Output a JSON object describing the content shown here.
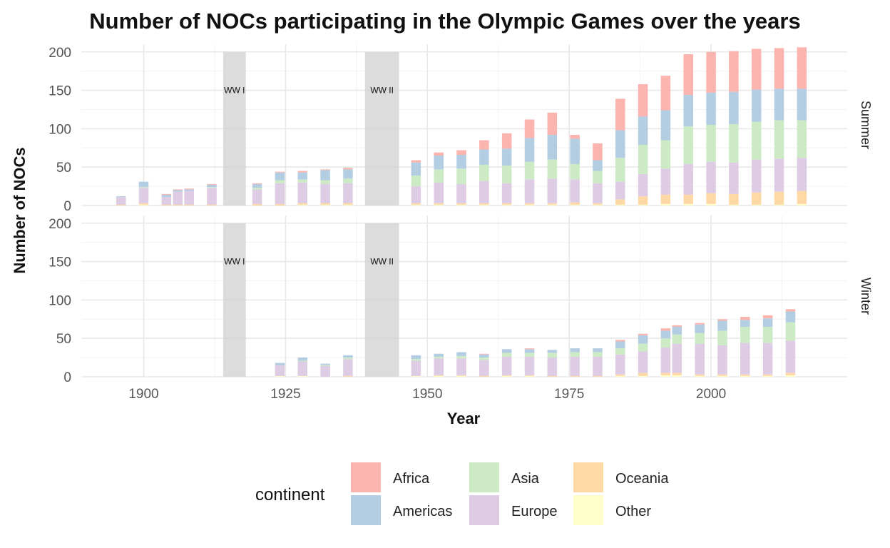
{
  "chart_data": {
    "type": "bar",
    "stacked": true,
    "title": "Number of NOCs participating in the Olympic Games over the years",
    "xlabel": "Year",
    "ylabel": "Number of NOCs",
    "xlim": [
      1889,
      2024
    ],
    "ylim": [
      0,
      210
    ],
    "x_ticks": [
      1900,
      1925,
      1950,
      1975,
      2000
    ],
    "y_ticks": [
      0,
      50,
      100,
      150,
      200
    ],
    "grid": true,
    "legend": {
      "title": "continent",
      "position": "bottom",
      "entries": [
        "Africa",
        "Americas",
        "Asia",
        "Europe",
        "Oceania",
        "Other"
      ]
    },
    "colors": {
      "Africa": "#FBB4AE",
      "Americas": "#B3CDE3",
      "Asia": "#CCEBC5",
      "Europe": "#DECBE4",
      "Oceania": "#FED9A6",
      "Other": "#FFFFCC"
    },
    "stack_order": [
      "Other",
      "Oceania",
      "Europe",
      "Asia",
      "Americas",
      "Africa"
    ],
    "annotations": [
      {
        "label": "WW I",
        "x_start": 1914,
        "x_end": 1918,
        "y": 150
      },
      {
        "label": "WW II",
        "x_start": 1939,
        "x_end": 1945,
        "y": 150
      }
    ],
    "facets": [
      {
        "name": "Summer",
        "bars": [
          {
            "year": 1896,
            "Africa": 0,
            "Americas": 1,
            "Asia": 0,
            "Europe": 10,
            "Oceania": 1,
            "Other": 0
          },
          {
            "year": 1900,
            "Africa": 0,
            "Americas": 7,
            "Asia": 1,
            "Europe": 20,
            "Oceania": 2,
            "Other": 1
          },
          {
            "year": 1904,
            "Africa": 1,
            "Americas": 3,
            "Asia": 0,
            "Europe": 10,
            "Oceania": 1,
            "Other": 0
          },
          {
            "year": 1906,
            "Africa": 1,
            "Americas": 2,
            "Asia": 0,
            "Europe": 17,
            "Oceania": 1,
            "Other": 0
          },
          {
            "year": 1908,
            "Africa": 1,
            "Americas": 2,
            "Asia": 0,
            "Europe": 18,
            "Oceania": 1,
            "Other": 0
          },
          {
            "year": 1912,
            "Africa": 1,
            "Americas": 3,
            "Asia": 1,
            "Europe": 22,
            "Oceania": 1,
            "Other": 0
          },
          {
            "year": 1920,
            "Africa": 1,
            "Americas": 5,
            "Asia": 2,
            "Europe": 19,
            "Oceania": 2,
            "Other": 0
          },
          {
            "year": 1924,
            "Africa": 1,
            "Americas": 10,
            "Asia": 4,
            "Europe": 27,
            "Oceania": 2,
            "Other": 0
          },
          {
            "year": 1928,
            "Africa": 2,
            "Americas": 9,
            "Asia": 4,
            "Europe": 27,
            "Oceania": 2,
            "Other": 1
          },
          {
            "year": 1932,
            "Africa": 1,
            "Americas": 13,
            "Asia": 5,
            "Europe": 25,
            "Oceania": 2,
            "Other": 1
          },
          {
            "year": 1936,
            "Africa": 2,
            "Americas": 12,
            "Asia": 6,
            "Europe": 26,
            "Oceania": 2,
            "Other": 1
          },
          {
            "year": 1948,
            "Africa": 3,
            "Americas": 17,
            "Asia": 14,
            "Europe": 22,
            "Oceania": 2,
            "Other": 1
          },
          {
            "year": 1952,
            "Africa": 4,
            "Americas": 18,
            "Asia": 17,
            "Europe": 27,
            "Oceania": 2,
            "Other": 1
          },
          {
            "year": 1956,
            "Africa": 6,
            "Americas": 18,
            "Asia": 20,
            "Europe": 25,
            "Oceania": 2,
            "Other": 1
          },
          {
            "year": 1960,
            "Africa": 12,
            "Americas": 20,
            "Asia": 21,
            "Europe": 29,
            "Oceania": 2,
            "Other": 1
          },
          {
            "year": 1964,
            "Africa": 20,
            "Americas": 22,
            "Asia": 23,
            "Europe": 26,
            "Oceania": 2,
            "Other": 1
          },
          {
            "year": 1968,
            "Africa": 24,
            "Americas": 31,
            "Asia": 23,
            "Europe": 31,
            "Oceania": 2,
            "Other": 1
          },
          {
            "year": 1972,
            "Africa": 29,
            "Americas": 32,
            "Asia": 25,
            "Europe": 32,
            "Oceania": 2,
            "Other": 1
          },
          {
            "year": 1976,
            "Africa": 5,
            "Americas": 33,
            "Asia": 20,
            "Europe": 30,
            "Oceania": 3,
            "Other": 1
          },
          {
            "year": 1980,
            "Africa": 22,
            "Americas": 14,
            "Asia": 16,
            "Europe": 26,
            "Oceania": 2,
            "Other": 1
          },
          {
            "year": 1984,
            "Africa": 41,
            "Americas": 36,
            "Asia": 31,
            "Europe": 23,
            "Oceania": 7,
            "Other": 1
          },
          {
            "year": 1988,
            "Africa": 42,
            "Americas": 37,
            "Asia": 38,
            "Europe": 29,
            "Oceania": 11,
            "Other": 1
          },
          {
            "year": 1992,
            "Africa": 45,
            "Americas": 39,
            "Asia": 37,
            "Europe": 34,
            "Oceania": 12,
            "Other": 2
          },
          {
            "year": 1996,
            "Africa": 53,
            "Americas": 41,
            "Asia": 49,
            "Europe": 40,
            "Oceania": 12,
            "Other": 2
          },
          {
            "year": 2000,
            "Africa": 53,
            "Americas": 42,
            "Asia": 48,
            "Europe": 41,
            "Oceania": 14,
            "Other": 2
          },
          {
            "year": 2004,
            "Africa": 53,
            "Americas": 42,
            "Asia": 50,
            "Europe": 41,
            "Oceania": 14,
            "Other": 1
          },
          {
            "year": 2008,
            "Africa": 53,
            "Americas": 42,
            "Asia": 49,
            "Europe": 43,
            "Oceania": 16,
            "Other": 1
          },
          {
            "year": 2012,
            "Africa": 53,
            "Americas": 41,
            "Asia": 50,
            "Europe": 43,
            "Oceania": 17,
            "Other": 1
          },
          {
            "year": 2016,
            "Africa": 54,
            "Americas": 41,
            "Asia": 49,
            "Europe": 43,
            "Oceania": 17,
            "Other": 2
          }
        ]
      },
      {
        "name": "Winter",
        "bars": [
          {
            "year": 1924,
            "Africa": 0,
            "Americas": 3,
            "Asia": 0,
            "Europe": 14,
            "Oceania": 0,
            "Other": 1
          },
          {
            "year": 1928,
            "Africa": 0,
            "Americas": 4,
            "Asia": 1,
            "Europe": 19,
            "Oceania": 0,
            "Other": 1
          },
          {
            "year": 1932,
            "Africa": 0,
            "Americas": 2,
            "Asia": 1,
            "Europe": 14,
            "Oceania": 0,
            "Other": 0
          },
          {
            "year": 1936,
            "Africa": 0,
            "Americas": 3,
            "Asia": 2,
            "Europe": 22,
            "Oceania": 1,
            "Other": 0
          },
          {
            "year": 1948,
            "Africa": 0,
            "Americas": 5,
            "Asia": 2,
            "Europe": 20,
            "Oceania": 0,
            "Other": 1
          },
          {
            "year": 1952,
            "Africa": 0,
            "Americas": 4,
            "Asia": 2,
            "Europe": 22,
            "Oceania": 1,
            "Other": 1
          },
          {
            "year": 1956,
            "Africa": 0,
            "Americas": 5,
            "Asia": 3,
            "Europe": 22,
            "Oceania": 1,
            "Other": 1
          },
          {
            "year": 1960,
            "Africa": 1,
            "Americas": 4,
            "Asia": 3,
            "Europe": 21,
            "Oceania": 1,
            "Other": 0
          },
          {
            "year": 1964,
            "Africa": 0,
            "Americas": 5,
            "Asia": 5,
            "Europe": 24,
            "Oceania": 1,
            "Other": 1
          },
          {
            "year": 1968,
            "Africa": 1,
            "Americas": 5,
            "Asia": 5,
            "Europe": 24,
            "Oceania": 1,
            "Other": 1
          },
          {
            "year": 1972,
            "Africa": 0,
            "Americas": 4,
            "Asia": 6,
            "Europe": 24,
            "Oceania": 1,
            "Other": 0
          },
          {
            "year": 1976,
            "Africa": 0,
            "Americas": 5,
            "Asia": 6,
            "Europe": 25,
            "Oceania": 1,
            "Other": 0
          },
          {
            "year": 1980,
            "Africa": 0,
            "Americas": 5,
            "Asia": 6,
            "Europe": 25,
            "Oceania": 1,
            "Other": 0
          },
          {
            "year": 1984,
            "Africa": 2,
            "Americas": 9,
            "Asia": 8,
            "Europe": 26,
            "Oceania": 2,
            "Other": 1
          },
          {
            "year": 1988,
            "Africa": 2,
            "Americas": 11,
            "Asia": 10,
            "Europe": 28,
            "Oceania": 4,
            "Other": 1
          },
          {
            "year": 1992,
            "Africa": 3,
            "Americas": 10,
            "Asia": 12,
            "Europe": 33,
            "Oceania": 3,
            "Other": 2
          },
          {
            "year": 1994,
            "Africa": 2,
            "Americas": 10,
            "Asia": 12,
            "Europe": 38,
            "Oceania": 3,
            "Other": 2
          },
          {
            "year": 1998,
            "Africa": 2,
            "Americas": 11,
            "Asia": 14,
            "Europe": 40,
            "Oceania": 2,
            "Other": 1
          },
          {
            "year": 2002,
            "Africa": 2,
            "Americas": 13,
            "Asia": 19,
            "Europe": 38,
            "Oceania": 2,
            "Other": 1
          },
          {
            "year": 2006,
            "Africa": 4,
            "Americas": 9,
            "Asia": 21,
            "Europe": 41,
            "Oceania": 2,
            "Other": 1
          },
          {
            "year": 2010,
            "Africa": 4,
            "Americas": 11,
            "Asia": 21,
            "Europe": 41,
            "Oceania": 2,
            "Other": 1
          },
          {
            "year": 2014,
            "Africa": 3,
            "Americas": 14,
            "Asia": 24,
            "Europe": 42,
            "Oceania": 3,
            "Other": 2
          }
        ]
      }
    ]
  }
}
